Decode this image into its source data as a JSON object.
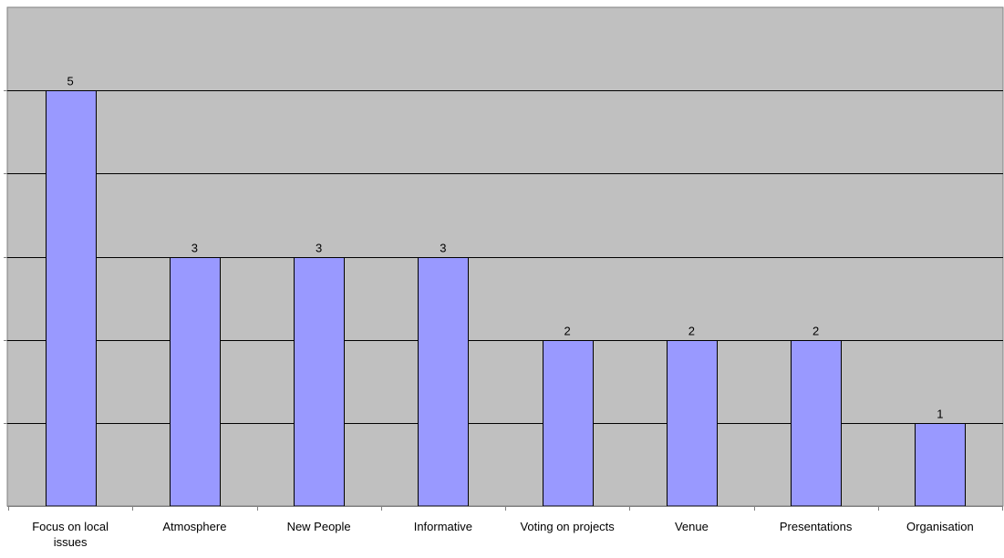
{
  "chart_data": {
    "type": "bar",
    "categories": [
      [
        "Focus on local",
        "issues"
      ],
      [
        "Atmosphere"
      ],
      [
        "New People"
      ],
      [
        "Informative"
      ],
      [
        "Voting on projects"
      ],
      [
        "Venue"
      ],
      [
        "Presentations"
      ],
      [
        "Organisation"
      ]
    ],
    "values": [
      5,
      3,
      3,
      3,
      2,
      2,
      2,
      1
    ],
    "ylim": [
      0,
      6
    ],
    "title": "",
    "xlabel": "",
    "ylabel": "",
    "grid": true,
    "legend": "none",
    "colors": {
      "plot_background": "#c0c0c0",
      "bar_fill": "#9999ff",
      "bar_stroke": "#000000",
      "gridline": "#000000",
      "axis": "#808080"
    }
  }
}
